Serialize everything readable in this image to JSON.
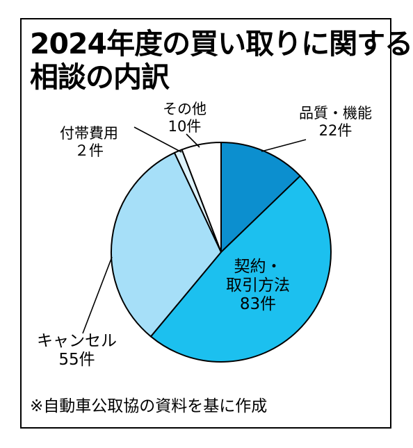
{
  "chart_data": {
    "type": "pie",
    "title_lines": [
      "2024年度の買い取りに関する",
      "相談の内訳"
    ],
    "slices": [
      {
        "label": "品質・機能",
        "value": 22,
        "value_label": "22件",
        "color": "#0c8fcf"
      },
      {
        "label": "契約・取引方法",
        "value": 83,
        "value_label": "83件",
        "color": "#1cc0ef"
      },
      {
        "label": "キャンセル",
        "value": 55,
        "value_label": "55件",
        "color": "#a6dff8"
      },
      {
        "label": "付帯費用",
        "value": 2,
        "value_label": "2件",
        "color": "#def3fc"
      },
      {
        "label": "その他",
        "value": 10,
        "value_label": "10件",
        "color": "#ffffff"
      }
    ],
    "slice_labels": {
      "quality_name": "品質・機能",
      "quality_count": "22件",
      "contract_line1": "契約・",
      "contract_line2": "取引方法",
      "contract_count": "83件",
      "cancel_name": "キャンセル",
      "cancel_count": "55件",
      "fees_name": "付帯費用",
      "fees_count": "２件",
      "other_name": "その他",
      "other_count": "10件"
    },
    "note": "※自動車公取協の資料を基に作成"
  }
}
